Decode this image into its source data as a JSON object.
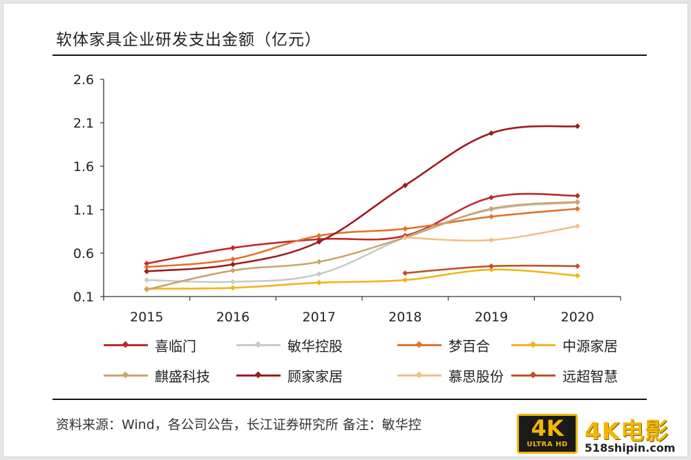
{
  "title": "软体家具企业研发支出金额（亿元）",
  "source": "资料来源：Wind，各公司公告，长江证券研究所  备注：敏华控",
  "watermark": {
    "badge_main": "4K",
    "badge_sub": "ULTRA HD",
    "text": "4K电影",
    "url": "518shipin.com"
  },
  "chart_data": {
    "type": "line",
    "categories": [
      "2015",
      "2016",
      "2017",
      "2018",
      "2019",
      "2020"
    ],
    "yticks": [
      "2.6",
      "2.1",
      "1.6",
      "1.1",
      "0.6",
      "0.1"
    ],
    "ylim": [
      0.1,
      2.6
    ],
    "series": [
      {
        "name": "喜临门",
        "color": "#c0272d",
        "values": [
          0.48,
          0.66,
          0.76,
          0.8,
          1.24,
          1.26
        ]
      },
      {
        "name": "敏华控股",
        "color": "#c9c9c9",
        "values": [
          0.29,
          0.27,
          0.36,
          0.78,
          1.1,
          1.18
        ]
      },
      {
        "name": "梦百合",
        "color": "#e0742a",
        "values": [
          0.44,
          0.53,
          0.8,
          0.88,
          1.02,
          1.11
        ]
      },
      {
        "name": "中源家居",
        "color": "#f3b31a",
        "values": [
          0.19,
          0.2,
          0.26,
          0.29,
          0.41,
          0.34
        ]
      },
      {
        "name": "麒盛科技",
        "color": "#c9a56c",
        "values": [
          0.18,
          0.4,
          0.5,
          0.78,
          1.11,
          1.19
        ]
      },
      {
        "name": "顾家家居",
        "color": "#9b1b1f",
        "values": [
          0.39,
          0.47,
          0.73,
          1.38,
          1.98,
          2.06
        ]
      },
      {
        "name": "慕思股份",
        "color": "#f0c088",
        "values": [
          null,
          null,
          null,
          0.78,
          0.75,
          0.91
        ]
      },
      {
        "name": "远超智慧",
        "color": "#c2502a",
        "values": [
          null,
          null,
          null,
          0.37,
          0.45,
          0.45
        ]
      }
    ]
  }
}
